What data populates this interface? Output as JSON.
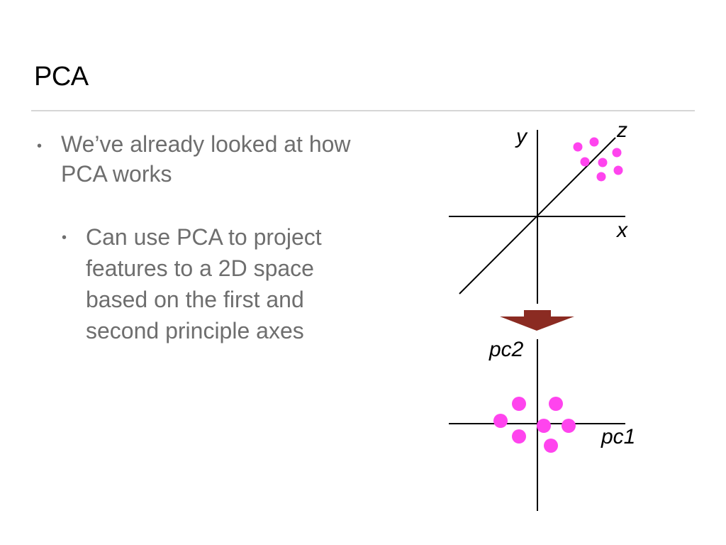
{
  "slide": {
    "title": "PCA",
    "bullets": [
      {
        "text": "We’ve already looked at how PCA works",
        "level": 1
      },
      {
        "text": "Can use PCA to project features to a 2D space based on the first and second principle axes",
        "level": 2
      }
    ],
    "bullet_glyph": "•"
  },
  "figure": {
    "top_axes": {
      "x_label": "x",
      "y_label": "y",
      "z_label": "z"
    },
    "bottom_axes": {
      "x_label": "pc1",
      "y_label": "pc2"
    },
    "point_color": "#ff44ee",
    "arrow_color": "#8b2b22"
  }
}
